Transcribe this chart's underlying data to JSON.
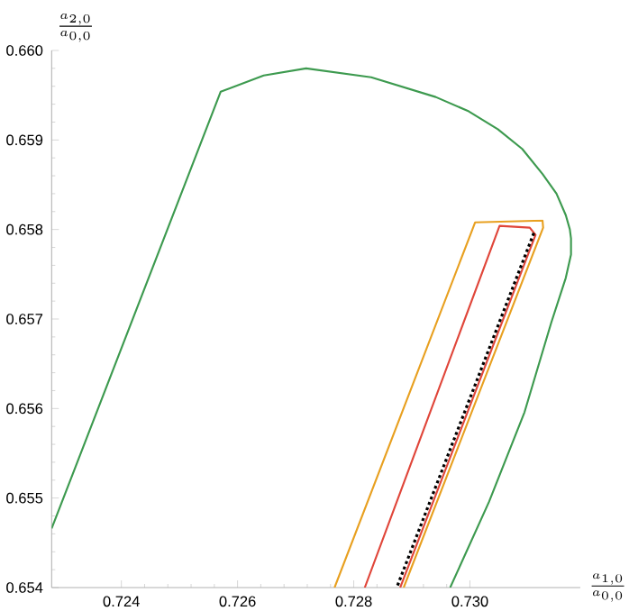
{
  "chart_data": {
    "type": "line",
    "xlabel": "\\frac{a_{1,0}}{a_{0,0}}",
    "ylabel": "\\frac{a_{2,0}}{a_{0,0}}",
    "xlim": [
      0.7228,
      0.7319
    ],
    "ylim": [
      0.654,
      0.66
    ],
    "xticks": [
      0.724,
      0.726,
      0.728,
      {
        "value": 0.73,
        "label": "0.730"
      }
    ],
    "yticks": [
      0.654,
      0.655,
      0.656,
      0.657,
      0.658,
      0.659,
      {
        "value": 0.66,
        "label": "0.660"
      }
    ],
    "series": [
      {
        "color": "#3d9a4f",
        "line_style": "solid",
        "x": [
          0.7228,
          0.72571,
          0.72645,
          0.72718,
          0.7283,
          0.72941,
          0.72998,
          0.73048,
          0.7309,
          0.73125,
          0.73149,
          0.73165,
          0.73172,
          0.73174,
          0.73174,
          0.73165,
          0.7314,
          0.73094,
          0.73033,
          0.72966
        ],
        "values": [
          0.65466,
          0.65954,
          0.65972,
          0.6598,
          0.6597,
          0.65948,
          0.65932,
          0.65912,
          0.6589,
          0.65862,
          0.6584,
          0.65816,
          0.658,
          0.6579,
          0.65772,
          0.65746,
          0.65696,
          0.65596,
          0.65496,
          0.654
        ]
      },
      {
        "color": "#e8a020",
        "line_style": "solid",
        "x": [
          0.72767,
          0.73009,
          0.73125,
          0.73126,
          0.72886
        ],
        "values": [
          0.654,
          0.65808,
          0.6581,
          0.65802,
          0.654
        ]
      },
      {
        "color": "#e0463a",
        "line_style": "solid",
        "x": [
          0.72819,
          0.73051,
          0.73103,
          0.73113,
          0.7288
        ],
        "values": [
          0.654,
          0.65804,
          0.65802,
          0.65794,
          0.654
        ]
      },
      {
        "color": "#000000",
        "line_style": "dotted",
        "x": [
          0.7311,
          0.72874
        ],
        "values": [
          0.65796,
          0.654
        ]
      }
    ]
  }
}
